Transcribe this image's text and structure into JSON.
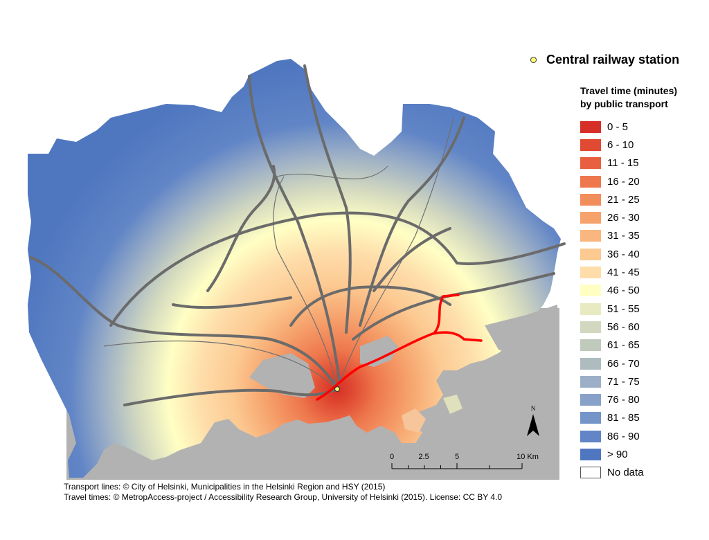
{
  "legend": {
    "station_label": "Central railway station",
    "title_line1": "Travel time (minutes)",
    "title_line2": "by public transport",
    "classes": [
      {
        "label": "0 - 5",
        "color": "#d62f27"
      },
      {
        "label": "6 - 10",
        "color": "#e04a32"
      },
      {
        "label": "11 - 15",
        "color": "#e8603f"
      },
      {
        "label": "16 - 20",
        "color": "#ee774d"
      },
      {
        "label": "21 - 25",
        "color": "#f28d5c"
      },
      {
        "label": "26 - 30",
        "color": "#f6a26c"
      },
      {
        "label": "31 - 35",
        "color": "#f9b67e"
      },
      {
        "label": "36 - 40",
        "color": "#fcc991"
      },
      {
        "label": "41 - 45",
        "color": "#feddaa"
      },
      {
        "label": "46 - 50",
        "color": "#ffffc4"
      },
      {
        "label": "51 - 55",
        "color": "#e8ebc2"
      },
      {
        "label": "56 - 60",
        "color": "#d2d8bf"
      },
      {
        "label": "61 - 65",
        "color": "#bfcabd"
      },
      {
        "label": "66 - 70",
        "color": "#aebcc0"
      },
      {
        "label": "71 - 75",
        "color": "#9cafc6"
      },
      {
        "label": "76 - 80",
        "color": "#88a1c8"
      },
      {
        "label": "81 - 85",
        "color": "#7594c8"
      },
      {
        "label": "86 - 90",
        "color": "#6185c6"
      },
      {
        "label": "> 90",
        "color": "#4f77c0"
      }
    ],
    "nodata_label": "No data",
    "station_color": "#ffff73"
  },
  "scalebar": {
    "labels": [
      "0",
      "2.5",
      "5",
      "10 Km"
    ]
  },
  "north_label": "N",
  "credits": {
    "line1": "Transport lines: © City of Helsinki, Municipalities in the Helsinki Region and HSY (2015)",
    "line2": "Travel times: © MetropAccess-project / Accessibility Research Group, University of Helsinki (2015). License: CC BY 4.0"
  },
  "map_colors": {
    "sea": "#b2b2b2",
    "roads": "#6b6b6b",
    "metro": "#ff0000",
    "rail": "#707070"
  }
}
